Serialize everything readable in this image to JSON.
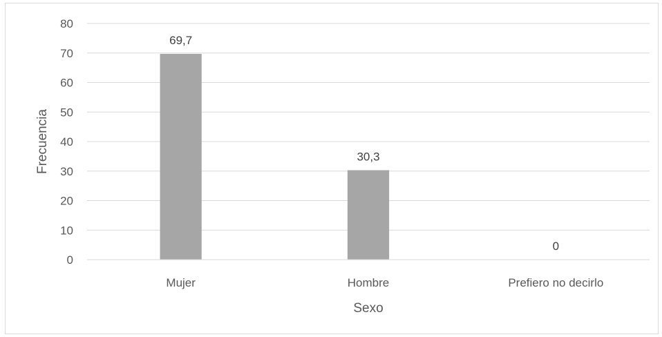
{
  "chart_data": {
    "type": "bar",
    "categories": [
      "Mujer",
      "Hombre",
      "Prefiero no decirlo"
    ],
    "values": [
      69.7,
      30.3,
      0
    ],
    "data_labels": [
      "69,7",
      "30,3",
      "0"
    ],
    "xlabel": "Sexo",
    "ylabel": "Frecuencia",
    "ylim": [
      0,
      80
    ],
    "yticks": [
      0,
      10,
      20,
      30,
      40,
      50,
      60,
      70,
      80
    ],
    "grid": true,
    "legend": "none",
    "bar_color": "#a6a6a6",
    "grid_color": "#d9d9d9"
  }
}
